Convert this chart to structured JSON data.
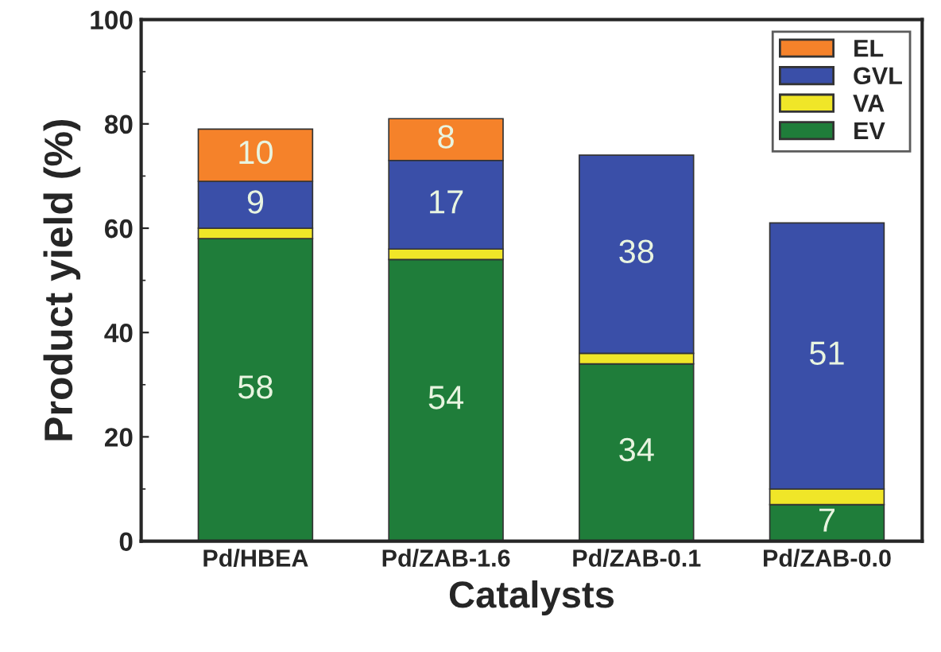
{
  "chart_data": {
    "type": "bar",
    "stacked": true,
    "xlabel": "Catalysts",
    "ylabel": "Product yield (%)",
    "categories": [
      "Pd/HBEA",
      "Pd/ZAB-1.6",
      "Pd/ZAB-0.1",
      "Pd/ZAB-0.0"
    ],
    "series": [
      {
        "name": "EV",
        "color": "#1f7d3a",
        "values": [
          58,
          54,
          34,
          7
        ],
        "value_labels": [
          "58",
          "54",
          "34",
          "7"
        ]
      },
      {
        "name": "VA",
        "color": "#f0e628",
        "values": [
          2,
          2,
          2,
          3
        ],
        "value_labels": [
          null,
          null,
          null,
          null
        ]
      },
      {
        "name": "GVL",
        "color": "#3a4fa8",
        "values": [
          9,
          17,
          38,
          51
        ],
        "value_labels": [
          "9",
          "17",
          "38",
          "51"
        ]
      },
      {
        "name": "EL",
        "color": "#f5822a",
        "values": [
          10,
          8,
          null,
          null
        ],
        "value_labels": [
          "10",
          "8",
          null,
          null
        ]
      }
    ],
    "ylim": [
      0,
      100
    ],
    "yticks": [
      0,
      20,
      40,
      60,
      80,
      100
    ],
    "legend": "top right",
    "grid": false
  }
}
